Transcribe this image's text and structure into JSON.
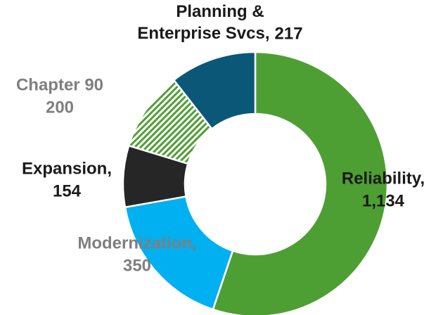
{
  "chart_data": {
    "type": "donut",
    "categories": [
      "Reliability,",
      "Modernization,",
      "Expansion,",
      "Chapter 90",
      "Planning & Enterprise Svcs,"
    ],
    "values": [
      1134,
      350,
      154,
      200,
      217
    ],
    "value_labels": [
      "1,134",
      "350",
      "154",
      "200",
      "217"
    ],
    "colors": [
      "#4e9f33",
      "#00b0f0",
      "#262626",
      "hatch:#4e9f33",
      "#0b5778"
    ],
    "label_colors": [
      "#1a1a1a",
      "#7f7f7f",
      "#1a1a1a",
      "#7f7f7f",
      "#1a1a1a"
    ]
  }
}
